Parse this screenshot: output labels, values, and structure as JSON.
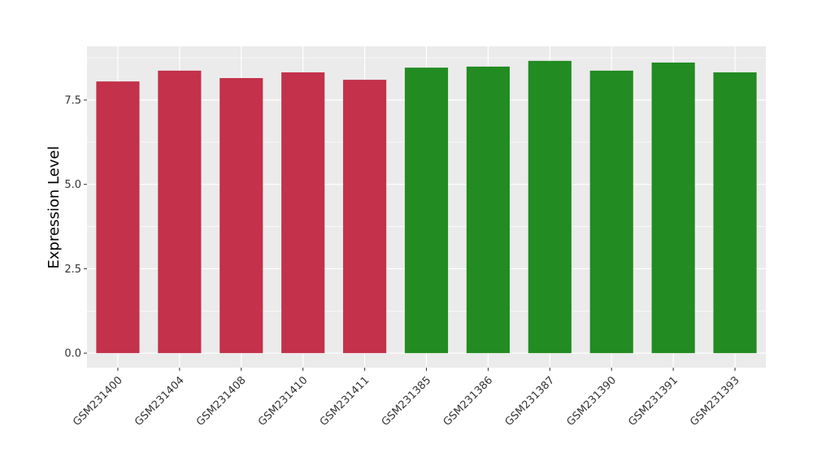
{
  "chart_data": {
    "type": "bar",
    "y_label": "Expression Level",
    "categories": [
      "GSM231400",
      "GSM231404",
      "GSM231408",
      "GSM231410",
      "GSM231411",
      "GSM231385",
      "GSM231386",
      "GSM231387",
      "GSM231390",
      "GSM231391",
      "GSM231393"
    ],
    "values": [
      8.05,
      8.37,
      8.15,
      8.32,
      8.1,
      8.46,
      8.49,
      8.66,
      8.37,
      8.61,
      8.32
    ],
    "colors": [
      "#c3314a",
      "#c3314a",
      "#c3314a",
      "#c3314a",
      "#c3314a",
      "#228b22",
      "#228b22",
      "#228b22",
      "#228b22",
      "#228b22",
      "#228b22"
    ],
    "ylim": [
      -0.43,
      9.09
    ],
    "yticks": [
      {
        "value": 0,
        "label": "0.0"
      },
      {
        "value": 2.5,
        "label": "2.5"
      },
      {
        "value": 5,
        "label": "5.0"
      },
      {
        "value": 7.5,
        "label": "7.5"
      }
    ],
    "grid": true
  }
}
